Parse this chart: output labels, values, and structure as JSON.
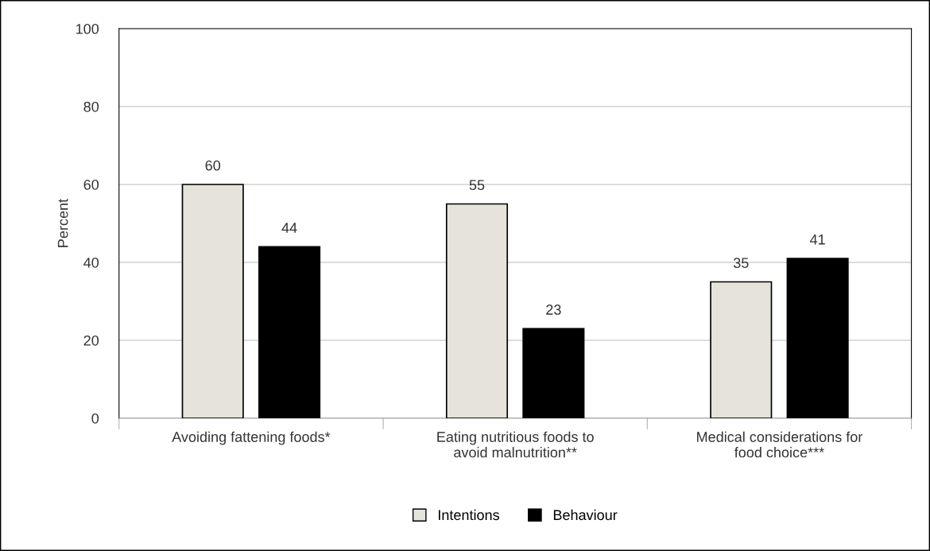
{
  "chart_data": {
    "type": "bar",
    "ylabel": "Percent",
    "categories": [
      "Avoiding fattening foods*",
      "Eating nutritious foods to\navoid malnutrition**",
      "Medical considerations for\nfood choice***"
    ],
    "series": [
      {
        "name": "Intentions",
        "color": "#e6e4da",
        "values": [
          60,
          55,
          35
        ]
      },
      {
        "name": "Behaviour",
        "color": "#000000",
        "values": [
          44,
          23,
          41
        ]
      }
    ],
    "ylim": [
      0,
      100
    ],
    "yticks": [
      0,
      20,
      40,
      60,
      80,
      100
    ],
    "grid": "y",
    "legend": "bottom",
    "data_labels": true
  }
}
